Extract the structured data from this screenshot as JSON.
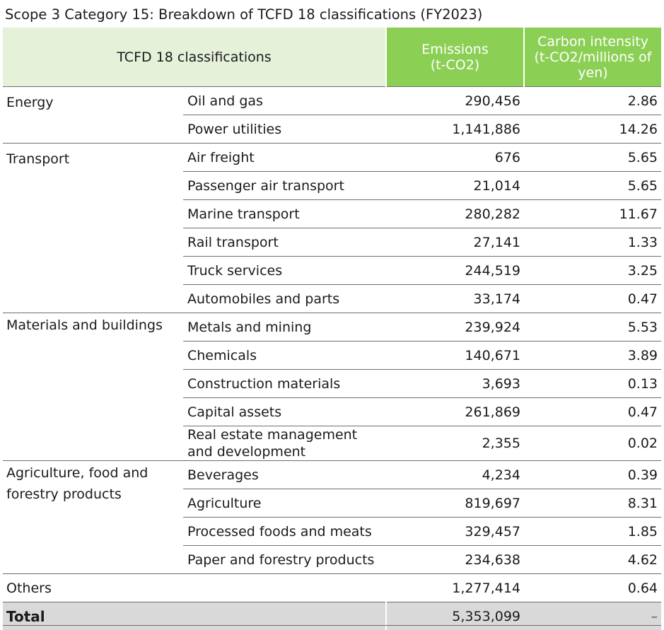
{
  "title": "Scope 3 Category 15: Breakdown of TCFD 18 classifications (FY2023)",
  "headers": {
    "classifications": "TCFD 18 classifications",
    "emissions_line1": "Emissions",
    "emissions_line2": "(t-CO2)",
    "intensity_line1": "Carbon intensity",
    "intensity_line2": "(t-CO2/millions of",
    "intensity_line3": "yen)"
  },
  "groups": {
    "energy": "Energy",
    "transport": "Transport",
    "materials": "Materials and buildings",
    "agri_line1": "Agriculture, food and",
    "agri_line2": "forestry products",
    "others": "Others"
  },
  "rows": [
    {
      "sub": "Oil and gas",
      "emissions": "290,456",
      "intensity": "2.86"
    },
    {
      "sub": "Power utilities",
      "emissions": "1,141,886",
      "intensity": "14.26"
    },
    {
      "sub": "Air freight",
      "emissions": "676",
      "intensity": "5.65"
    },
    {
      "sub": "Passenger air transport",
      "emissions": "21,014",
      "intensity": "5.65"
    },
    {
      "sub": "Marine transport",
      "emissions": "280,282",
      "intensity": "11.67"
    },
    {
      "sub": "Rail transport",
      "emissions": "27,141",
      "intensity": "1.33"
    },
    {
      "sub": "Truck services",
      "emissions": "244,519",
      "intensity": "3.25"
    },
    {
      "sub": "Automobiles and parts",
      "emissions": "33,174",
      "intensity": "0.47"
    },
    {
      "sub": "Metals and mining",
      "emissions": "239,924",
      "intensity": "5.53"
    },
    {
      "sub": "Chemicals",
      "emissions": "140,671",
      "intensity": "3.89"
    },
    {
      "sub": "Construction materials",
      "emissions": "3,693",
      "intensity": "0.13"
    },
    {
      "sub": "Capital assets",
      "emissions": "261,869",
      "intensity": "0.47"
    },
    {
      "sub_line1": "Real estate management",
      "sub_line2": "and development",
      "emissions": "2,355",
      "intensity": "0.02"
    },
    {
      "sub": "Beverages",
      "emissions": "4,234",
      "intensity": "0.39"
    },
    {
      "sub": "Agriculture",
      "emissions": "819,697",
      "intensity": "8.31"
    },
    {
      "sub": "Processed foods and meats",
      "emissions": "329,457",
      "intensity": "1.85"
    },
    {
      "sub": "Paper and forestry products",
      "emissions": "234,638",
      "intensity": "4.62"
    }
  ],
  "others": {
    "emissions": "1,277,414",
    "intensity": "0.64"
  },
  "total": {
    "label": "Total",
    "emissions": "5,353,099",
    "intensity": "–"
  }
}
